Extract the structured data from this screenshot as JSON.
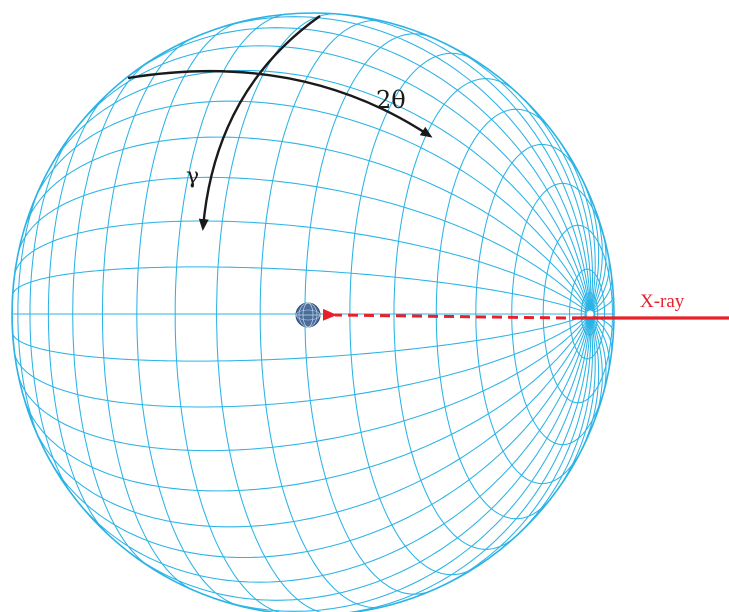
{
  "labels": {
    "two_theta": "2θ",
    "gamma": "γ",
    "xray": "X-ray"
  },
  "colors": {
    "grid": "#2bb3e6",
    "beam": "#e8202a",
    "arrow": "#1a1a1a",
    "sample": "#4a6d9a"
  },
  "icons": {
    "sample": "sample-sphere-icon"
  }
}
